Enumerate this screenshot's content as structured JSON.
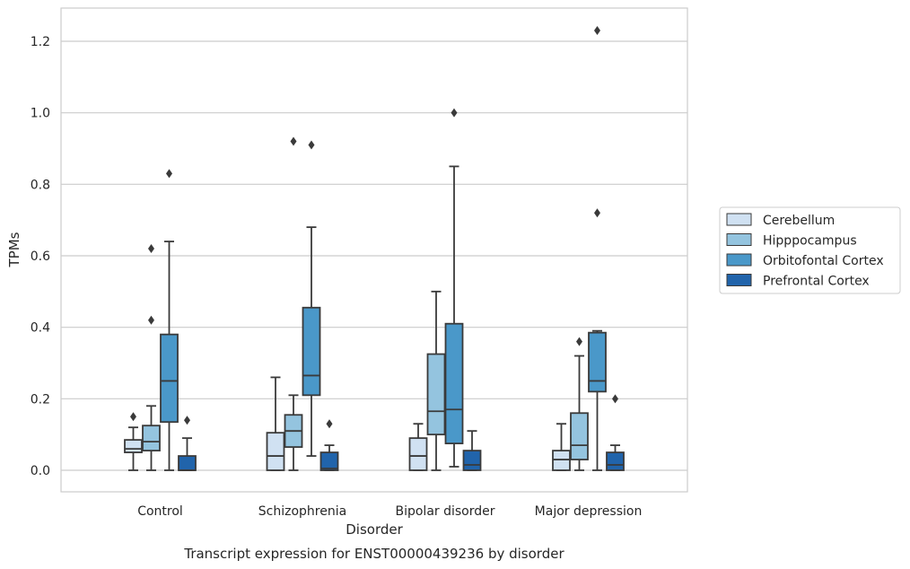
{
  "chart_data": {
    "type": "box",
    "title": "Transcript expression for ENST00000439236 by disorder",
    "xlabel": "Disorder",
    "ylabel": "TPMs",
    "ylim": [
      -0.06,
      1.29
    ],
    "yticks": [
      "0.0",
      "0.2",
      "0.4",
      "0.6",
      "0.8",
      "1.0",
      "1.2"
    ],
    "categories": [
      "Control",
      "Schizophrenia",
      "Bipolar disorder",
      "Major depression"
    ],
    "grid": true,
    "legend_position": "right",
    "series": [
      {
        "name": "Cerebellum",
        "color": "#d0e1f2",
        "boxes": [
          {
            "whislo": 0.0,
            "q1": 0.05,
            "med": 0.06,
            "q3": 0.085,
            "whishi": 0.12,
            "fliers": [
              0.15
            ]
          },
          {
            "whislo": 0.0,
            "q1": 0.0,
            "med": 0.04,
            "q3": 0.105,
            "whishi": 0.26,
            "fliers": []
          },
          {
            "whislo": 0.0,
            "q1": 0.0,
            "med": 0.04,
            "q3": 0.09,
            "whishi": 0.13,
            "fliers": []
          },
          {
            "whislo": 0.0,
            "q1": 0.0,
            "med": 0.03,
            "q3": 0.055,
            "whishi": 0.13,
            "fliers": []
          }
        ]
      },
      {
        "name": "Hipppocampus",
        "color": "#94c4df",
        "boxes": [
          {
            "whislo": 0.0,
            "q1": 0.055,
            "med": 0.08,
            "q3": 0.125,
            "whishi": 0.18,
            "fliers": [
              0.42,
              0.62
            ]
          },
          {
            "whislo": 0.0,
            "q1": 0.065,
            "med": 0.11,
            "q3": 0.155,
            "whishi": 0.21,
            "fliers": [
              0.92
            ]
          },
          {
            "whislo": 0.0,
            "q1": 0.1,
            "med": 0.165,
            "q3": 0.325,
            "whishi": 0.5,
            "fliers": []
          },
          {
            "whislo": 0.0,
            "q1": 0.03,
            "med": 0.07,
            "q3": 0.16,
            "whishi": 0.32,
            "fliers": [
              0.36
            ]
          }
        ]
      },
      {
        "name": "Orbitofontal Cortex",
        "color": "#4a98c9",
        "boxes": [
          {
            "whislo": 0.0,
            "q1": 0.135,
            "med": 0.25,
            "q3": 0.38,
            "whishi": 0.64,
            "fliers": [
              0.83
            ]
          },
          {
            "whislo": 0.04,
            "q1": 0.21,
            "med": 0.265,
            "q3": 0.455,
            "whishi": 0.68,
            "fliers": [
              0.91
            ]
          },
          {
            "whislo": 0.01,
            "q1": 0.075,
            "med": 0.17,
            "q3": 0.41,
            "whishi": 0.85,
            "fliers": [
              1.0
            ]
          },
          {
            "whislo": 0.0,
            "q1": 0.22,
            "med": 0.25,
            "q3": 0.385,
            "whishi": 0.39,
            "fliers": [
              0.72,
              1.23
            ]
          }
        ]
      },
      {
        "name": "Prefrontal Cortex",
        "color": "#2164ab",
        "boxes": [
          {
            "whislo": 0.0,
            "q1": 0.0,
            "med": 0.0,
            "q3": 0.04,
            "whishi": 0.09,
            "fliers": [
              0.14
            ]
          },
          {
            "whislo": 0.0,
            "q1": 0.0,
            "med": 0.005,
            "q3": 0.05,
            "whishi": 0.07,
            "fliers": [
              0.13
            ]
          },
          {
            "whislo": 0.0,
            "q1": 0.0,
            "med": 0.015,
            "q3": 0.055,
            "whishi": 0.11,
            "fliers": []
          },
          {
            "whislo": 0.0,
            "q1": 0.0,
            "med": 0.015,
            "q3": 0.05,
            "whishi": 0.07,
            "fliers": [
              0.2
            ]
          }
        ]
      }
    ]
  }
}
